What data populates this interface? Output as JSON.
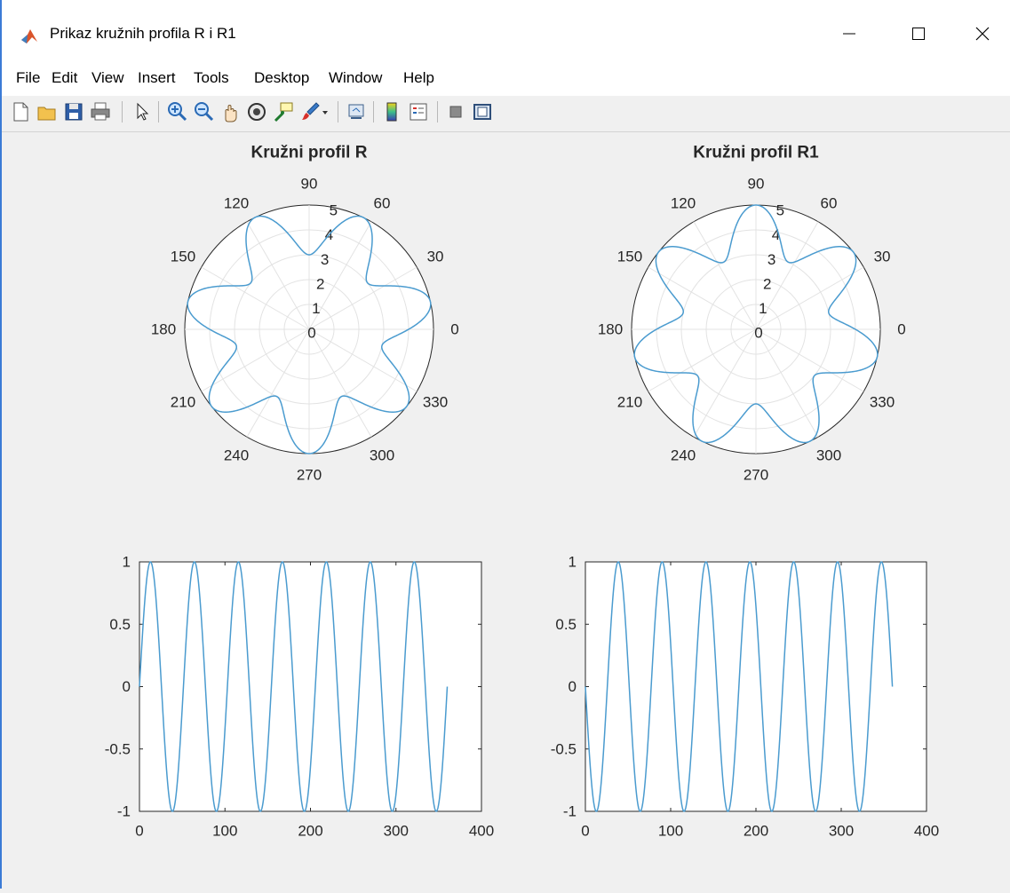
{
  "window": {
    "title": "Prikaz kružnih profila R i R1",
    "controls": {
      "minimize": "—",
      "maximize": "☐",
      "close": "✕"
    }
  },
  "menu": {
    "items": [
      "File",
      "Edit",
      "View",
      "Insert",
      "Tools",
      "Desktop",
      "Window",
      "Help"
    ]
  },
  "toolbar": {
    "icons": [
      "new-file-icon",
      "open-folder-icon",
      "save-icon",
      "print-icon",
      "pointer-icon",
      "zoom-in-icon",
      "zoom-out-icon",
      "pan-icon",
      "rotate-3d-icon",
      "data-cursor-icon",
      "brush-icon",
      "link-plot-icon",
      "colorbar-icon",
      "legend-icon",
      "hide-plot-tools-icon",
      "show-plot-tools-icon"
    ]
  },
  "chart_data": [
    {
      "type": "polar",
      "title": "Kružni profil R",
      "angle_ticks": [
        0,
        30,
        60,
        90,
        120,
        150,
        180,
        210,
        240,
        270,
        300,
        330
      ],
      "radial_ticks": [
        0,
        1,
        2,
        3,
        4,
        5
      ],
      "rlim": [
        0,
        5
      ],
      "grid": true,
      "series": [
        {
          "function": "r = 4 + sin(7θ)",
          "theta_range_deg": [
            0,
            360
          ],
          "color": "#4a9bcf"
        }
      ]
    },
    {
      "type": "polar",
      "title": "Kružni profil R1",
      "angle_ticks": [
        0,
        30,
        60,
        90,
        120,
        150,
        180,
        210,
        240,
        270,
        300,
        330
      ],
      "radial_ticks": [
        0,
        1,
        2,
        3,
        4,
        5
      ],
      "rlim": [
        0,
        5
      ],
      "grid": true,
      "series": [
        {
          "function": "r = 4 - sin(7θ)",
          "theta_range_deg": [
            0,
            360
          ],
          "color": "#4a9bcf"
        }
      ]
    },
    {
      "type": "line",
      "title": "",
      "xlabel": "",
      "ylabel": "",
      "xlim": [
        0,
        400
      ],
      "ylim": [
        -1,
        1
      ],
      "xticks": [
        0,
        100,
        200,
        300,
        400
      ],
      "yticks": [
        -1,
        -0.5,
        0,
        0.5,
        1
      ],
      "series": [
        {
          "function": "y = sin(7·x°)",
          "x_range": [
            0,
            360
          ],
          "color": "#4a9bcf"
        }
      ]
    },
    {
      "type": "line",
      "title": "",
      "xlabel": "",
      "ylabel": "",
      "xlim": [
        0,
        400
      ],
      "ylim": [
        -1,
        1
      ],
      "xticks": [
        0,
        100,
        200,
        300,
        400
      ],
      "yticks": [
        -1,
        -0.5,
        0,
        0.5,
        1
      ],
      "series": [
        {
          "function": "y = -sin(7·x°)",
          "x_range": [
            0,
            360
          ],
          "color": "#4a9bcf"
        }
      ]
    }
  ]
}
